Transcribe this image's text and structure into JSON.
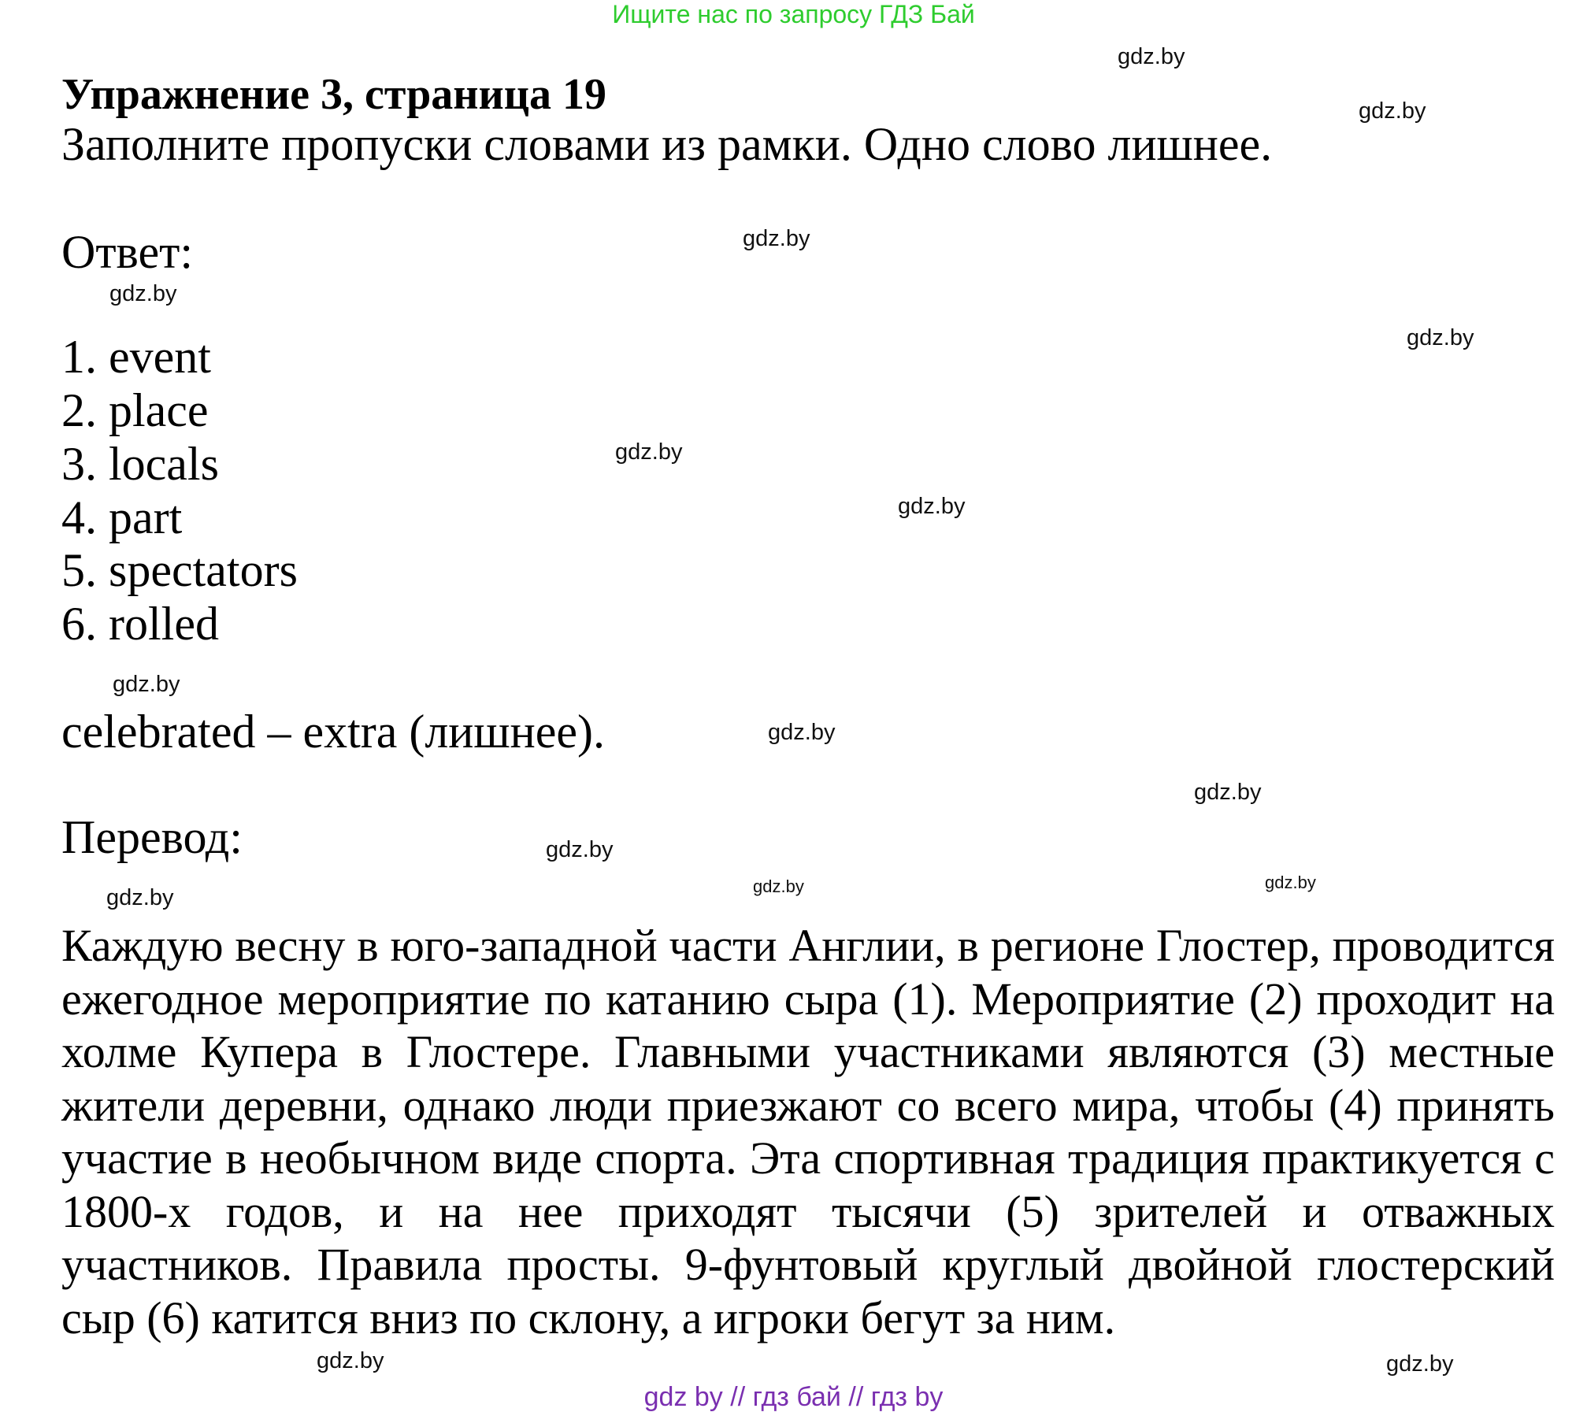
{
  "banner": "Ищите нас по запросу ГДЗ Бай",
  "title": "Упражнение 3, страница 19",
  "instruction": "Заполните пропуски словами из рамки. Одно слово лишнее.",
  "answer_label": "Ответ:",
  "answers": [
    "1. event",
    "2. place",
    "3. locals",
    "4. part",
    "5. spectators",
    "6. rolled"
  ],
  "extra_note": "celebrated – extra (лишнее).",
  "translation_label": "Перевод:",
  "translation_lines": [
    "Каждую весну в юго-западной части Англии, в регионе Глостер, проводится",
    "ежегодное мероприятие по катанию сыра (1). Мероприятие (2) проходит на",
    "холме Купера в Глостере. Главными участниками являются (3) местные",
    "жители деревни, однако люди приезжают со всего мира, чтобы (4) принять",
    "участие в необычном виде спорта. Эта спортивная традиция практикуется с",
    "1800-х годов, и на нее приходят тысячи (5) зрителей и отважных",
    "участников. Правила просты. 9-фунтовый круглый двойной глостерский",
    "сыр (6) катится вниз по склону, а игроки бегут за ним."
  ],
  "watermark": "gdz.by",
  "footer": "gdz by  //  гдз бай  //  гдз by",
  "colors": {
    "banner": "#2ecc2e",
    "footer": "#7a2fb0"
  }
}
